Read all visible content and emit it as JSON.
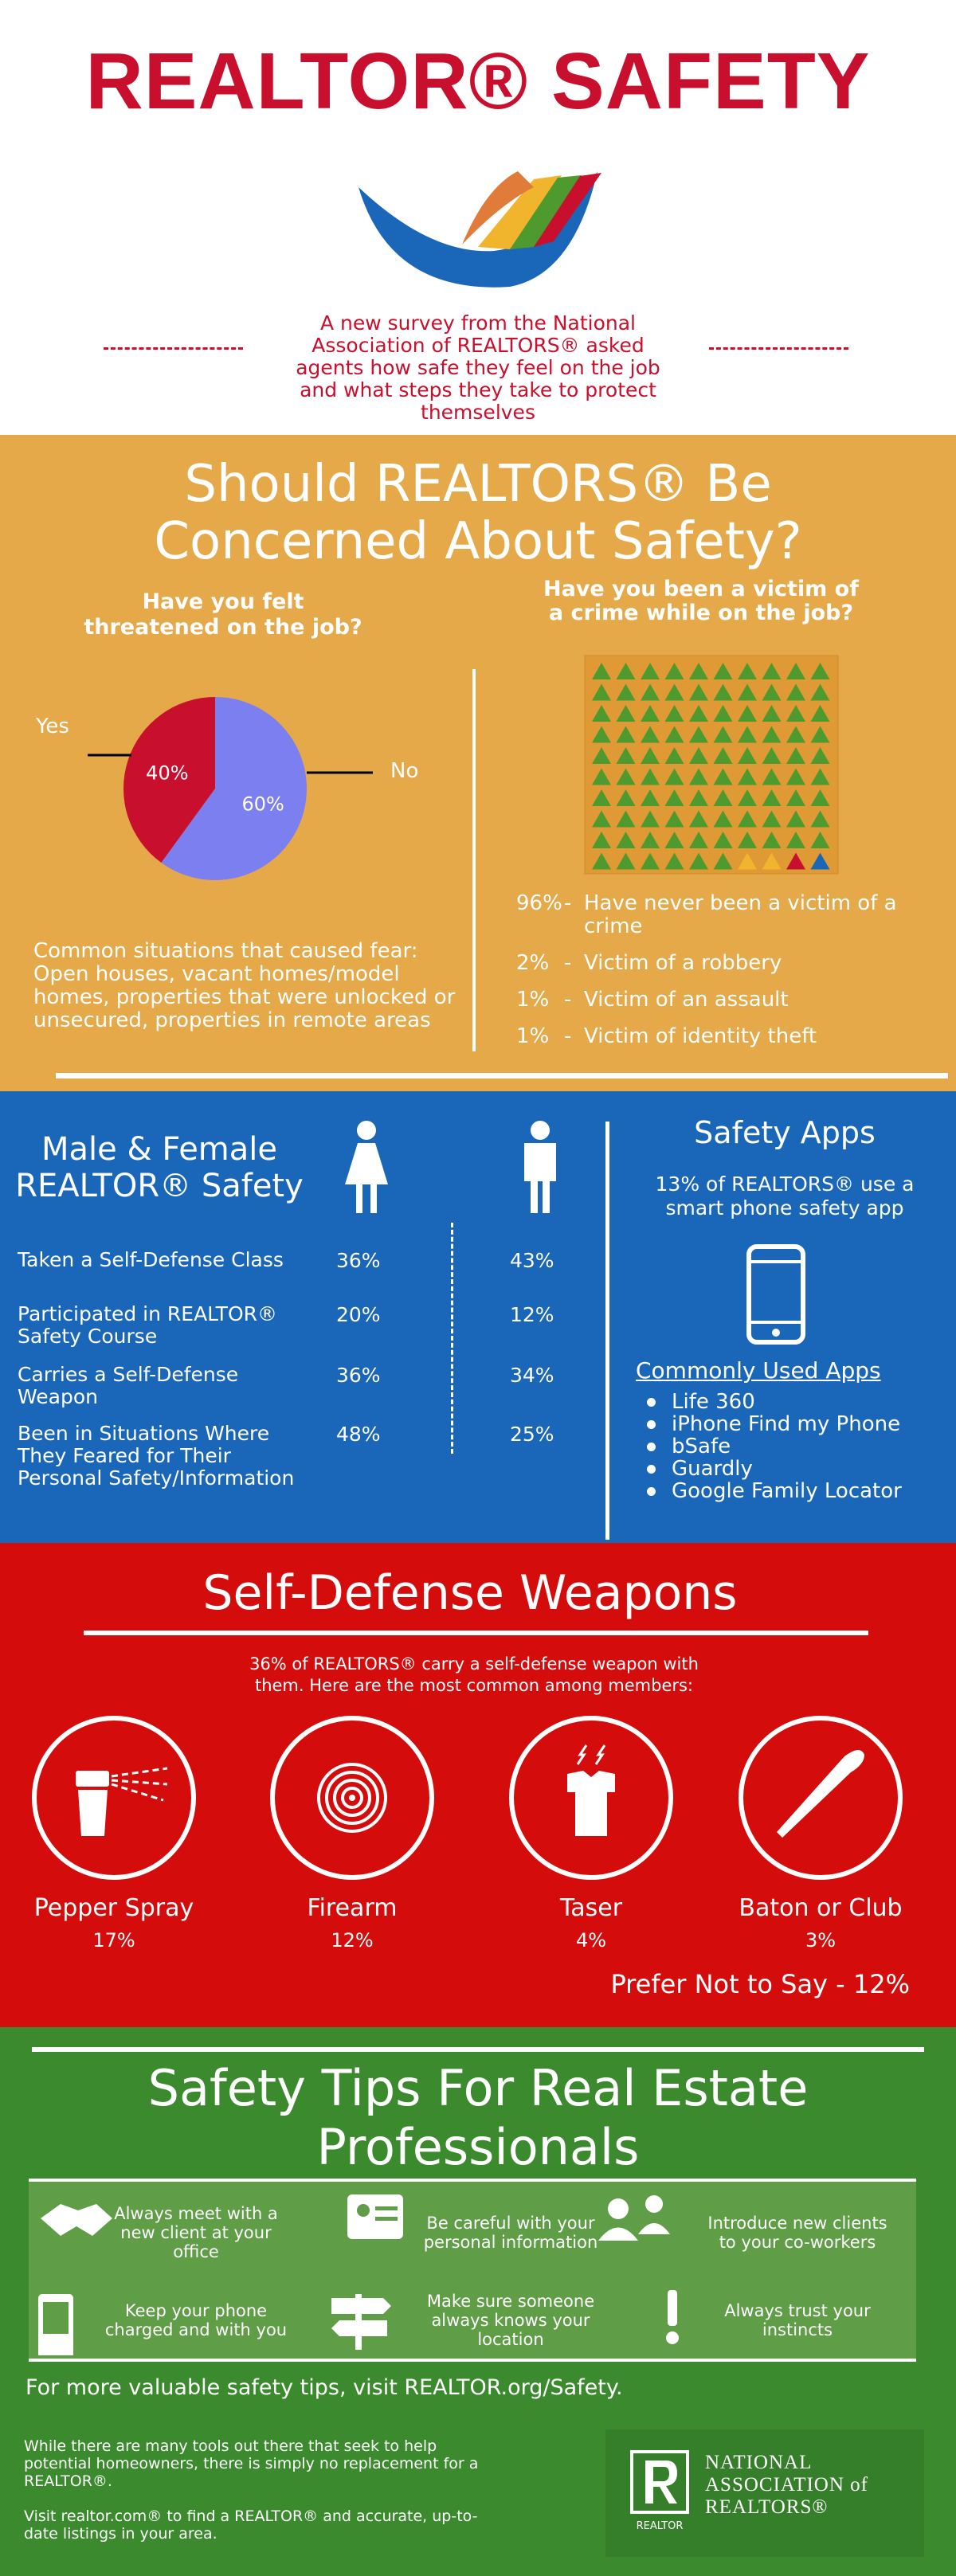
{
  "header": {
    "title": "REALTOR® SAFETY",
    "intro": "A new survey from the National Association of REALTORS® asked agents how safe they feel on the job and what steps they take to protect themselves"
  },
  "concern": {
    "title": "Should REALTORS® Be Concerned About Safety?",
    "threatened": {
      "question": "Have you felt threatened on the job?",
      "chart": {
        "type": "pie",
        "categories": [
          "Yes",
          "No"
        ],
        "values": [
          40,
          60
        ],
        "value_labels": [
          "40%",
          "60%"
        ],
        "colors": [
          "#c8102e",
          "#7b7ff0"
        ]
      },
      "note": "Common situations that caused fear: Open houses, vacant homes/model homes, properties that were unlocked or unsecured, properties in remote areas"
    },
    "victim": {
      "question": "Have you been a victim of a crime while on the job?",
      "chart": {
        "type": "waffle",
        "categories": [
          "Have never been a victim of a crime",
          "Victim of a robbery",
          "Victim of an assault",
          "Victim of identity theft"
        ],
        "values": [
          96,
          2,
          1,
          1
        ],
        "value_labels": [
          "96%",
          "2%",
          "1%",
          "1%"
        ],
        "colors": [
          "#4e9a2e",
          "#f0b52c",
          "#c8102e",
          "#1a66b8"
        ]
      }
    }
  },
  "gender": {
    "title": "Male & Female REALTOR® Safety",
    "rows": [
      {
        "label": "Taken a Self-Defense Class",
        "female": "36%",
        "male": "43%"
      },
      {
        "label": "Participated in REALTOR® Safety Course",
        "female": "20%",
        "male": "12%"
      },
      {
        "label": "Carries a Self-Defense Weapon",
        "female": "36%",
        "male": "34%"
      },
      {
        "label": "Been in Situations Where They Feared for Their Personal Safety/Information",
        "female": "48%",
        "male": "25%"
      }
    ]
  },
  "apps": {
    "title": "Safety Apps",
    "stat": "13% of REALTORS® use a smart phone safety app",
    "list_title": "Commonly Used Apps",
    "items": [
      "Life 360",
      "iPhone Find my Phone",
      "bSafe",
      "Guardly",
      "Google Family Locator"
    ]
  },
  "weapons": {
    "title": "Self-Defense Weapons",
    "intro": "36% of REALTORS® carry a self-defense weapon with them. Here are the most common among members:",
    "items": [
      {
        "name": "Pepper Spray",
        "value": "17%"
      },
      {
        "name": "Firearm",
        "value": "12%"
      },
      {
        "name": "Taser",
        "value": "4%"
      },
      {
        "name": "Baton or Club",
        "value": "3%"
      }
    ],
    "other": "Prefer Not to Say - 12%"
  },
  "tips": {
    "title": "Safety Tips For Real Estate Professionals",
    "items": [
      "Always meet with a new client at your office",
      "Be careful with your personal information",
      "Introduce new clients to your co-workers",
      "Keep your phone charged and with you",
      "Make sure someone always knows your location",
      "Always trust your instincts"
    ],
    "cta": "For more valuable safety tips, visit REALTOR.org/Safety."
  },
  "footer": {
    "text1": "While there are many tools out there that seek to help potential homeowners, there is simply no replacement for a REALTOR®.",
    "text2": "Visit realtor.com® to find a REALTOR® and accurate, up-to-date listings in your area.",
    "logo_mark": "REALTOR",
    "logo_text": "NATIONAL ASSOCIATION of REALTORS®"
  }
}
